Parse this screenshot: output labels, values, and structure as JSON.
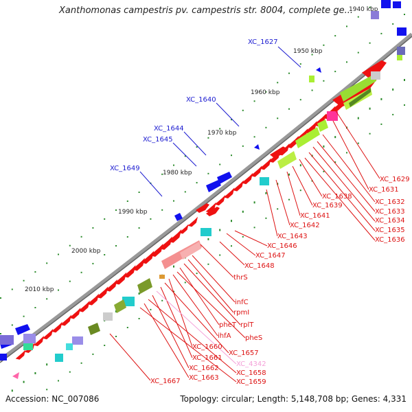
{
  "title": "Xanthomonas campestris pv. campestris str. 8004, complete ge...",
  "scale_labels": [
    "1940 kbp",
    "1950 kbp",
    "1960 kbp",
    "1970 kbp",
    "1980 kbp",
    "1990 kbp",
    "2000 kbp",
    "2010 kbp"
  ],
  "blue_labels": [
    "XC_1627",
    "XC_1640",
    "XC_1644",
    "XC_1645",
    "XC_1649"
  ],
  "red_labels_right": [
    "XC_1629",
    "XC_1631",
    "XC_1632",
    "XC_1633",
    "XC_1634",
    "XC_1635",
    "XC_1636"
  ],
  "red_labels_mid": [
    "XC_1638",
    "XC_1639",
    "XC_1641",
    "XC_1642",
    "XC_1643",
    "XC_1646",
    "XC_1647",
    "XC_1648",
    "thrS"
  ],
  "red_labels_low": [
    "infC",
    "rpmI",
    "rplT",
    "pheT",
    "pheS",
    "ihfA",
    "XC_1660",
    "XC_1657",
    "XC_1661",
    "XC_4342",
    "XC_1662",
    "XC_1658",
    "XC_1663",
    "XC_1659",
    "XC_1667"
  ],
  "footer": {
    "accession": "Accession: NC_007086",
    "topology": "Topology: circular; Length: 5,148,708 bp; Genes: 4,331"
  },
  "colors": {
    "gene_red": "#ee1111",
    "gene_blue": "#1111ee",
    "label_red": "#dd1111",
    "label_blue": "#1a1ad0",
    "label_pink": "#f4a0d8",
    "backbone": "#888888",
    "scale_dots": "#2a8a2a"
  }
}
